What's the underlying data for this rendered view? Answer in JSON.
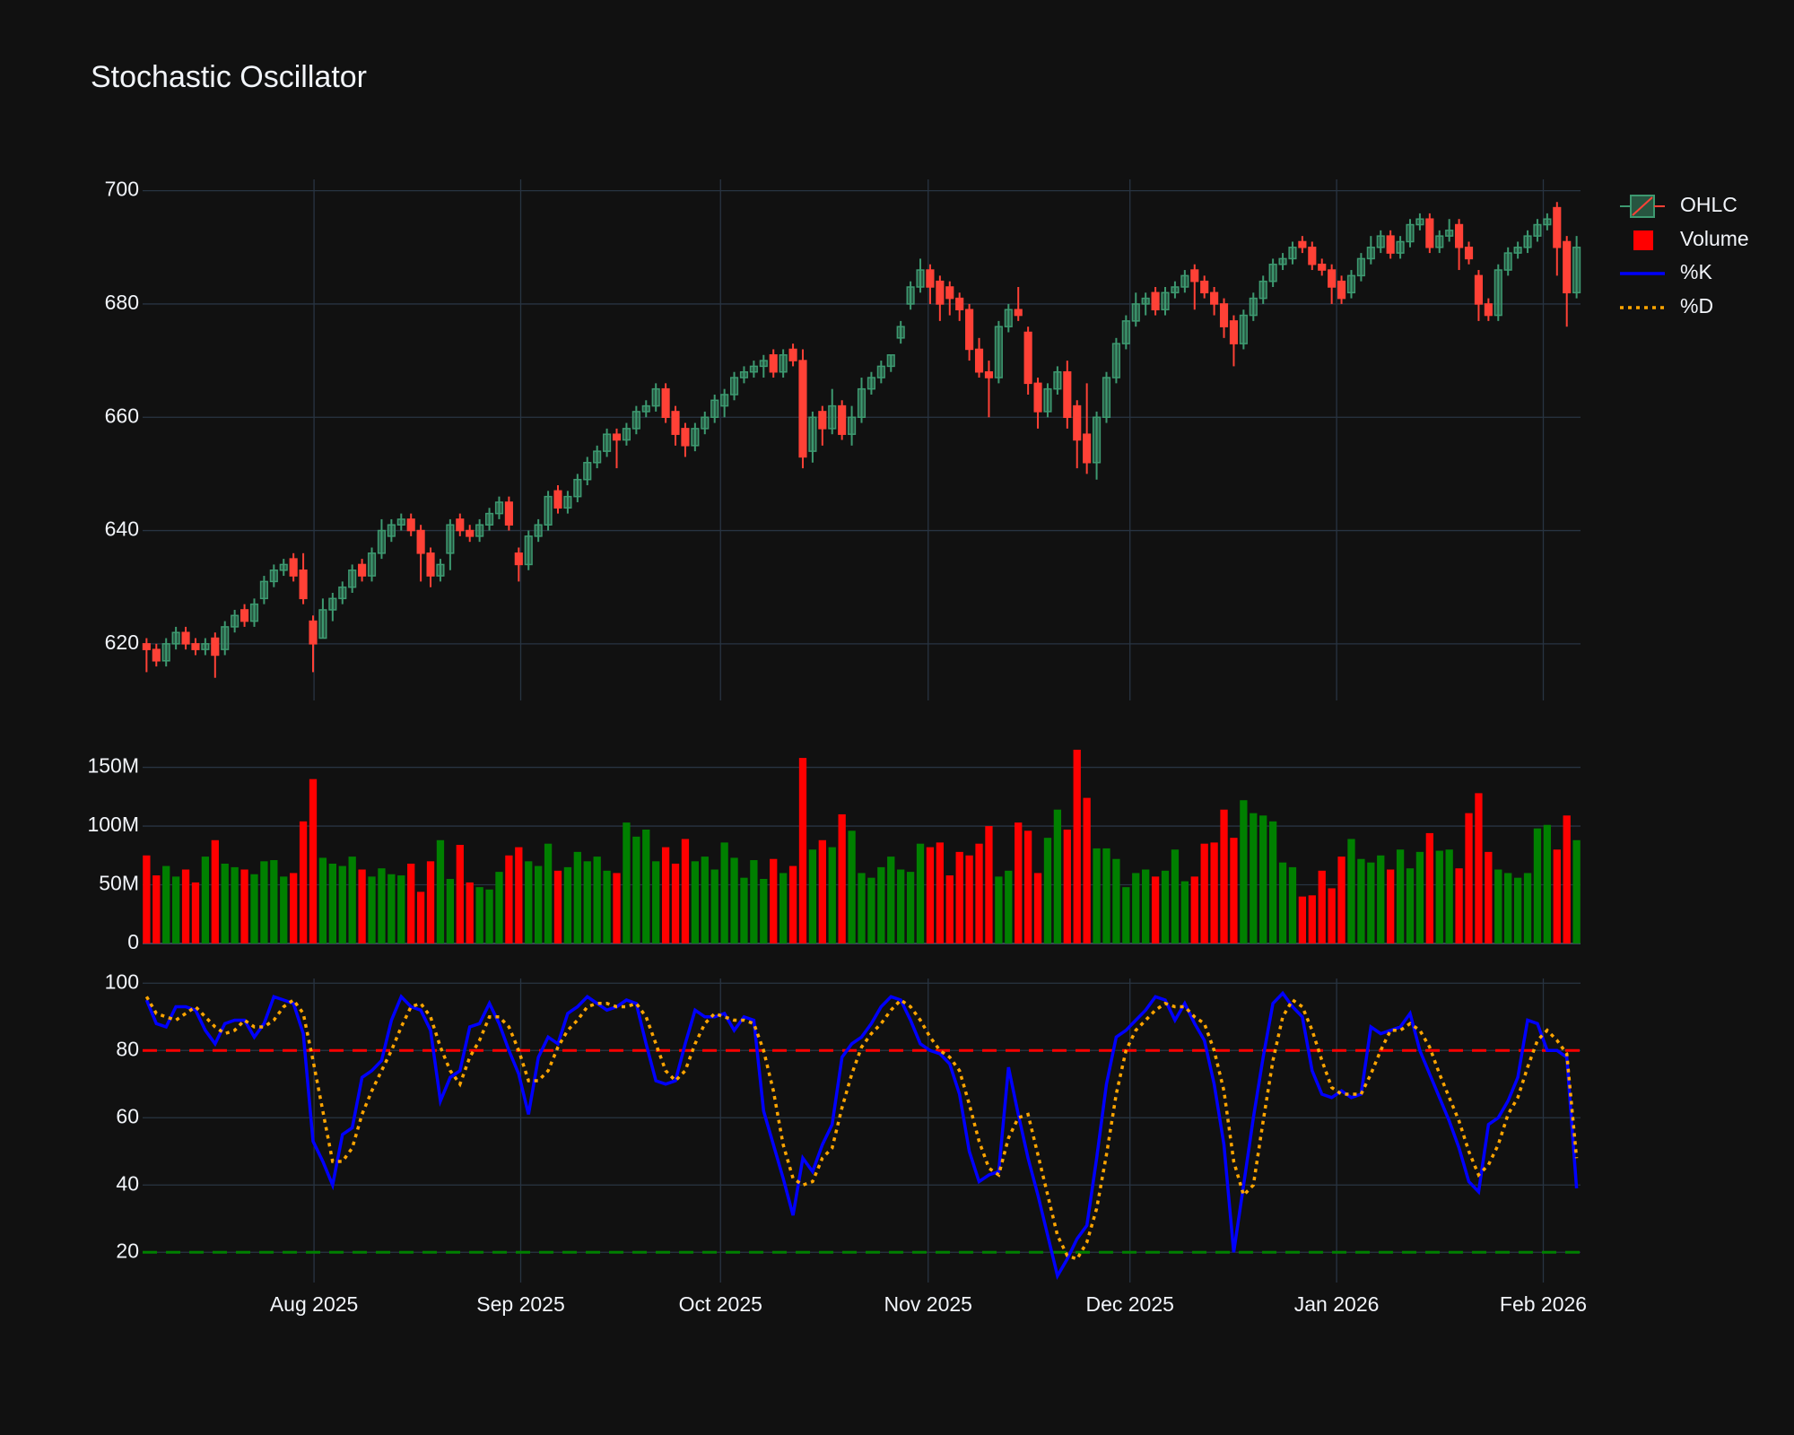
{
  "chart_data": [
    {
      "type": "candlestick",
      "title": "Stochastic Oscillator",
      "name": "OHLC",
      "increasing_color": "#3d9970",
      "decreasing_color": "#ff4136",
      "ylim": [
        610,
        702
      ],
      "yticks": [
        620,
        640,
        660,
        680,
        700
      ],
      "grid": true,
      "open": [
        620,
        619,
        617,
        620,
        622,
        620,
        619,
        621,
        619,
        623,
        626,
        624,
        628,
        631,
        633,
        635,
        633,
        624,
        621,
        626,
        628,
        630,
        634,
        632,
        636,
        639,
        641,
        642,
        640,
        636,
        632,
        636,
        642,
        640,
        639,
        641,
        643,
        645,
        636,
        634,
        639,
        641,
        647,
        644,
        646,
        649,
        652,
        654,
        657,
        656,
        658,
        661,
        662,
        665,
        661,
        658,
        655,
        658,
        660,
        662,
        664,
        667,
        668,
        669,
        671,
        668,
        672,
        670,
        654,
        661,
        658,
        662,
        657,
        660,
        665,
        667,
        669,
        674,
        680,
        683,
        686,
        684,
        683,
        681,
        679,
        672,
        668,
        667,
        676,
        679,
        675,
        666,
        661,
        665,
        668,
        662,
        657,
        652,
        660,
        667,
        673,
        677,
        680,
        682,
        679,
        682,
        683,
        686,
        684,
        682,
        680,
        677,
        673,
        678,
        681,
        684,
        687,
        688,
        691,
        690,
        687,
        686,
        684,
        682,
        685,
        688,
        690,
        692,
        689,
        691,
        694,
        695,
        690,
        692,
        694,
        690,
        685,
        680,
        678,
        686,
        689,
        690,
        692,
        694,
        697,
        691,
        682
      ],
      "high": [
        621,
        620,
        621,
        623,
        623,
        621,
        621,
        622,
        624,
        626,
        627,
        628,
        632,
        634,
        635,
        636,
        636,
        625,
        628,
        629,
        631,
        634,
        635,
        637,
        642,
        642,
        643,
        643,
        641,
        637,
        635,
        642,
        643,
        641,
        642,
        644,
        646,
        646,
        637,
        640,
        642,
        647,
        648,
        647,
        650,
        653,
        655,
        658,
        658,
        659,
        662,
        663,
        666,
        666,
        662,
        659,
        659,
        661,
        664,
        665,
        668,
        669,
        670,
        671,
        672,
        672,
        673,
        672,
        661,
        662,
        665,
        663,
        662,
        667,
        668,
        670,
        671,
        677,
        684,
        688,
        687,
        685,
        684,
        682,
        680,
        674,
        670,
        677,
        680,
        683,
        676,
        667,
        666,
        669,
        670,
        663,
        666,
        661,
        668,
        674,
        678,
        682,
        682,
        683,
        683,
        684,
        686,
        687,
        685,
        683,
        681,
        678,
        679,
        682,
        685,
        688,
        689,
        691,
        692,
        691,
        688,
        687,
        685,
        686,
        689,
        692,
        693,
        693,
        692,
        695,
        696,
        696,
        693,
        695,
        695,
        691,
        686,
        681,
        687,
        690,
        691,
        693,
        695,
        696,
        698,
        692,
        692
      ],
      "low": [
        615,
        616,
        616,
        619,
        619,
        618,
        618,
        614,
        618,
        622,
        623,
        623,
        627,
        630,
        632,
        631,
        627,
        615,
        621,
        624,
        627,
        629,
        631,
        631,
        635,
        638,
        640,
        639,
        631,
        630,
        631,
        633,
        639,
        638,
        638,
        640,
        642,
        640,
        631,
        633,
        638,
        640,
        643,
        643,
        645,
        648,
        651,
        653,
        651,
        655,
        657,
        660,
        661,
        659,
        655,
        653,
        654,
        657,
        659,
        660,
        663,
        666,
        667,
        667,
        667,
        667,
        669,
        651,
        652,
        655,
        657,
        656,
        655,
        659,
        664,
        666,
        668,
        673,
        679,
        682,
        680,
        677,
        678,
        677,
        670,
        667,
        660,
        666,
        675,
        677,
        664,
        658,
        660,
        664,
        658,
        651,
        650,
        649,
        659,
        666,
        672,
        676,
        678,
        678,
        678,
        681,
        682,
        679,
        681,
        678,
        674,
        669,
        672,
        677,
        680,
        683,
        686,
        687,
        689,
        686,
        685,
        680,
        680,
        681,
        684,
        687,
        689,
        688,
        688,
        690,
        693,
        689,
        689,
        691,
        686,
        687,
        677,
        677,
        677,
        685,
        688,
        689,
        691,
        693,
        685,
        676,
        681
      ],
      "close": [
        619,
        617,
        620,
        622,
        620,
        619,
        620,
        618,
        623,
        625,
        624,
        627,
        631,
        633,
        634,
        632,
        628,
        620,
        626,
        628,
        630,
        633,
        632,
        636,
        640,
        641,
        642,
        640,
        636,
        632,
        634,
        641,
        640,
        639,
        641,
        643,
        645,
        641,
        634,
        639,
        641,
        646,
        644,
        646,
        649,
        652,
        654,
        657,
        656,
        658,
        661,
        662,
        665,
        660,
        657,
        655,
        658,
        660,
        663,
        664,
        667,
        668,
        669,
        670,
        668,
        671,
        670,
        653,
        660,
        658,
        662,
        657,
        660,
        665,
        667,
        669,
        671,
        676,
        683,
        686,
        683,
        680,
        681,
        679,
        672,
        668,
        667,
        676,
        679,
        678,
        666,
        661,
        665,
        668,
        660,
        656,
        652,
        660,
        667,
        673,
        677,
        680,
        681,
        679,
        682,
        683,
        685,
        684,
        682,
        680,
        676,
        673,
        678,
        681,
        684,
        687,
        688,
        690,
        690,
        687,
        686,
        683,
        681,
        685,
        688,
        690,
        692,
        689,
        691,
        694,
        695,
        690,
        692,
        693,
        690,
        688,
        680,
        678,
        686,
        689,
        690,
        692,
        694,
        695,
        690,
        682,
        690
      ]
    },
    {
      "type": "bar",
      "name": "Volume",
      "increasing_color": "green",
      "decreasing_color": "red",
      "ylim": [
        0,
        168000000.0
      ],
      "yticks": [
        0,
        {
          "value": 50000000.0,
          "label": "50M"
        },
        {
          "value": 100000000.0,
          "label": "100M"
        },
        {
          "value": 150000000.0,
          "label": "150M"
        }
      ],
      "grid": true,
      "values": [
        75000000.0,
        58000000.0,
        66000000.0,
        57000000.0,
        63000000.0,
        52000000.0,
        74000000.0,
        88000000.0,
        68000000.0,
        65000000.0,
        63000000.0,
        59000000.0,
        70000000.0,
        71000000.0,
        57000000.0,
        60000000.0,
        104000000.0,
        140000000.0,
        73000000.0,
        68000000.0,
        66000000.0,
        74000000.0,
        63000000.0,
        57000000.0,
        64000000.0,
        59000000.0,
        58000000.0,
        68000000.0,
        44000000.0,
        70000000.0,
        88000000.0,
        55000000.0,
        84000000.0,
        52000000.0,
        48000000.0,
        46000000.0,
        61000000.0,
        75000000.0,
        82000000.0,
        70000000.0,
        66000000.0,
        85000000.0,
        62000000.0,
        65000000.0,
        78000000.0,
        70000000.0,
        74000000.0,
        62000000.0,
        60000000.0,
        103000000.0,
        91000000.0,
        97000000.0,
        70000000.0,
        82000000.0,
        68000000.0,
        89000000.0,
        70000000.0,
        74000000.0,
        63000000.0,
        86000000.0,
        73000000.0,
        56000000.0,
        71000000.0,
        55000000.0,
        72000000.0,
        60000000.0,
        66000000.0,
        158000000.0,
        80000000.0,
        88000000.0,
        82000000.0,
        110000000.0,
        96000000.0,
        60000000.0,
        56000000.0,
        65000000.0,
        74000000.0,
        63000000.0,
        61000000.0,
        85000000.0,
        82000000.0,
        86000000.0,
        58000000.0,
        78000000.0,
        75000000.0,
        85000000.0,
        100000000.0,
        57000000.0,
        62000000.0,
        103000000.0,
        96000000.0,
        60000000.0,
        90000000.0,
        114000000.0,
        97000000.0,
        165000000.0,
        124000000.0,
        81000000.0,
        81000000.0,
        72000000.0,
        48000000.0,
        60000000.0,
        63000000.0,
        57000000.0,
        62000000.0,
        80000000.0,
        53000000.0,
        57000000.0,
        85000000.0,
        86000000.0,
        114000000.0,
        90000000.0,
        122000000.0,
        111000000.0,
        109000000.0,
        104000000.0,
        69000000.0,
        65000000.0,
        40000000.0,
        41000000.0,
        62000000.0,
        47000000.0,
        74000000.0,
        89000000.0,
        72000000.0,
        69000000.0,
        75000000.0,
        63000000.0,
        80000000.0,
        64000000.0,
        78000000.0,
        94000000.0,
        79000000.0,
        80000000.0,
        64000000.0,
        111000000.0,
        128000000.0,
        78000000.0,
        63000000.0,
        60000000.0,
        56000000.0,
        60000000.0,
        98000000.0,
        101000000.0,
        80000000.0,
        109000000.0,
        88000000.0
      ]
    },
    {
      "type": "line",
      "ylim": [
        11,
        101.4
      ],
      "yticks": [
        20,
        40,
        60,
        80,
        100
      ],
      "grid": true,
      "xlim": [
        -0.4,
        146.4
      ],
      "xticks": [
        {
          "value": 17.1,
          "label": "Aug 2025"
        },
        {
          "value": 38.2,
          "label": "Sep 2025"
        },
        {
          "value": 58.6,
          "label": "Oct 2025"
        },
        {
          "value": 79.8,
          "label": "Nov 2025"
        },
        {
          "value": 100.4,
          "label": "Dec 2025"
        },
        {
          "value": 121.5,
          "label": "Jan 2026"
        },
        {
          "value": 142.6,
          "label": "Feb 2026"
        }
      ],
      "levels": [
        {
          "value": 80,
          "color": "red"
        },
        {
          "value": 20,
          "color": "green"
        }
      ],
      "series": [
        {
          "name": "%K",
          "color": "blue",
          "dash": "solid",
          "values": [
            95,
            88,
            87,
            93,
            93,
            92,
            86,
            82,
            88,
            89,
            89,
            84,
            88,
            96,
            95,
            94,
            85,
            53,
            47,
            40,
            55,
            57,
            72,
            74,
            77,
            89,
            96,
            93,
            92,
            86,
            65,
            72,
            74,
            87,
            88,
            94,
            88,
            80,
            73,
            61,
            78,
            84,
            82,
            91,
            93,
            96,
            94,
            92,
            93,
            95,
            94,
            82,
            71,
            70,
            71,
            82,
            92,
            90,
            90,
            91,
            86,
            90,
            89,
            62,
            52,
            42,
            31,
            48,
            44,
            52,
            58,
            78,
            82,
            84,
            88,
            93,
            96,
            95,
            89,
            82,
            80,
            79,
            76,
            67,
            50,
            41,
            43,
            44,
            75,
            61,
            48,
            37,
            25,
            13,
            18,
            24,
            28,
            48,
            70,
            84,
            86,
            89,
            92,
            96,
            95,
            89,
            94,
            88,
            83,
            70,
            52,
            20,
            40,
            60,
            78,
            94,
            97,
            93,
            90,
            74,
            67,
            66,
            68,
            66,
            67,
            87,
            85,
            86,
            87,
            91,
            80,
            73,
            66,
            59,
            51,
            41,
            38,
            58,
            60,
            65,
            72,
            89,
            88,
            80,
            80,
            78,
            39
          ]
        },
        {
          "name": "%D",
          "color": "orange",
          "dash": "dot",
          "values": [
            96,
            91,
            90,
            89,
            91,
            93,
            90,
            87,
            85,
            86,
            89,
            87,
            87,
            89,
            93,
            95,
            91,
            77,
            62,
            47,
            47,
            51,
            61,
            68,
            74,
            80,
            87,
            93,
            94,
            90,
            81,
            74,
            70,
            78,
            83,
            90,
            90,
            87,
            80,
            71,
            71,
            74,
            81,
            86,
            89,
            93,
            94,
            94,
            93,
            93,
            94,
            90,
            82,
            74,
            71,
            74,
            82,
            88,
            91,
            90,
            89,
            89,
            88,
            80,
            68,
            52,
            42,
            40,
            41,
            48,
            51,
            63,
            73,
            81,
            85,
            88,
            92,
            95,
            93,
            89,
            84,
            80,
            78,
            74,
            64,
            53,
            45,
            43,
            54,
            60,
            61,
            49,
            37,
            25,
            19,
            18,
            23,
            33,
            49,
            67,
            80,
            86,
            89,
            92,
            94,
            93,
            93,
            90,
            88,
            80,
            68,
            47,
            37,
            40,
            59,
            77,
            90,
            95,
            93,
            86,
            77,
            69,
            67,
            67,
            67,
            73,
            80,
            86,
            86,
            88,
            86,
            81,
            73,
            66,
            59,
            50,
            43,
            46,
            52,
            61,
            66,
            75,
            83,
            86,
            83,
            79,
            48
          ]
        }
      ]
    }
  ]
}
